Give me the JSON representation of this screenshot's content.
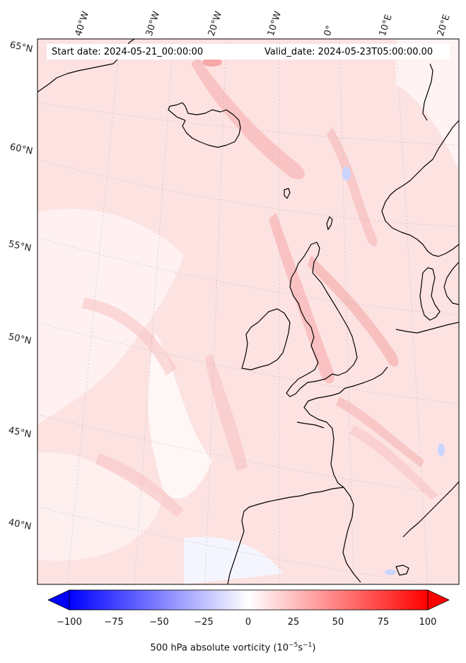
{
  "header": {
    "start_date": "Start date: 2024-05-21_00:00:00",
    "valid_date": "Valid_date: 2024-05-23T05:00:00.00"
  },
  "axes": {
    "longitude_labels": [
      "40°W",
      "30°W",
      "20°W",
      "10°W",
      "0°",
      "10°E",
      "20°E"
    ],
    "latitude_labels": [
      "65°N",
      "60°N",
      "55°N",
      "50°N",
      "45°N",
      "40°N"
    ]
  },
  "colorbar": {
    "ticks": [
      "−100",
      "−75",
      "−50",
      "−25",
      "0",
      "25",
      "50",
      "75",
      "100"
    ],
    "vmin": -100,
    "vmax": 100,
    "label": "500 hPa absolute vorticity (10",
    "label_exp": "−5",
    "label_mid": "s",
    "label_exp2": "−1",
    "label_end": ")",
    "colors": {
      "negative": "#0000ff",
      "zero": "#ffffff",
      "positive": "#ff0000"
    }
  },
  "map": {
    "field": "500 hPa absolute vorticity",
    "background_tint": "#fde3e3",
    "coastline_color": "#000000",
    "gridline_color": "#bbbbbb"
  }
}
